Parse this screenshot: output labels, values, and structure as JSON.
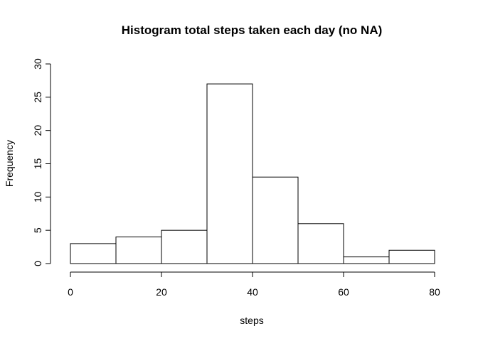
{
  "chart_data": {
    "type": "bar",
    "title": "Histogram total steps taken each day (no NA)",
    "xlabel": "steps",
    "ylabel": "Frequency",
    "bins": [
      {
        "start": 0,
        "end": 10,
        "count": 3
      },
      {
        "start": 10,
        "end": 20,
        "count": 4
      },
      {
        "start": 20,
        "end": 30,
        "count": 5
      },
      {
        "start": 30,
        "end": 40,
        "count": 27
      },
      {
        "start": 40,
        "end": 50,
        "count": 13
      },
      {
        "start": 50,
        "end": 60,
        "count": 6
      },
      {
        "start": 60,
        "end": 70,
        "count": 1
      },
      {
        "start": 70,
        "end": 80,
        "count": 2
      }
    ],
    "xlim": [
      0,
      80
    ],
    "ylim": [
      0,
      30
    ],
    "x_ticks": [
      0,
      20,
      40,
      60,
      80
    ],
    "y_ticks": [
      0,
      5,
      10,
      15,
      20,
      25,
      30
    ],
    "grid": false,
    "legend": "none"
  }
}
